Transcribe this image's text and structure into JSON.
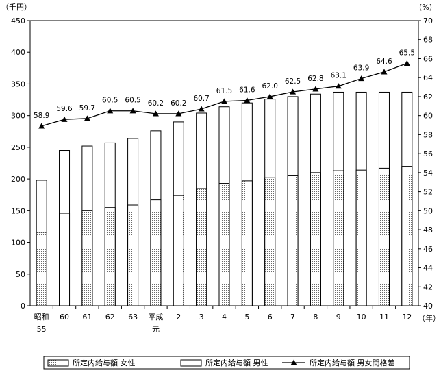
{
  "chart_data": {
    "type": "bar",
    "y_unit_left": "（千円）",
    "y_unit_right": "(%)",
    "x_unit": "（年）",
    "categories": [
      [
        "昭和",
        "55"
      ],
      [
        "60"
      ],
      [
        "61"
      ],
      [
        "62"
      ],
      [
        "63"
      ],
      [
        "平成",
        "元"
      ],
      [
        "2"
      ],
      [
        "3"
      ],
      [
        "4"
      ],
      [
        "5"
      ],
      [
        "6"
      ],
      [
        "7"
      ],
      [
        "8"
      ],
      [
        "9"
      ],
      [
        "10"
      ],
      [
        "11"
      ],
      [
        "12"
      ]
    ],
    "ylim_left": [
      0,
      450
    ],
    "yticks_left": [
      "0",
      "50",
      "100",
      "150",
      "200",
      "250",
      "300",
      "350",
      "400",
      "450"
    ],
    "ylim_right": [
      40,
      70
    ],
    "yticks_right": [
      "40",
      "42",
      "44",
      "46",
      "48",
      "50",
      "52",
      "54",
      "56",
      "58",
      "60",
      "62",
      "64",
      "66",
      "68",
      "70"
    ],
    "series": [
      {
        "name": "所定内給与額 女性",
        "kind": "bar",
        "values": [
          116,
          146,
          150,
          155,
          159,
          167,
          174,
          185,
          193,
          197,
          202,
          206,
          210,
          213,
          214,
          217,
          220
        ]
      },
      {
        "name": "所定内給与額 男性",
        "kind": "bar",
        "values": [
          198,
          245,
          252,
          257,
          264,
          276,
          290,
          304,
          314,
          320,
          326,
          330,
          334,
          337,
          337,
          337,
          337
        ]
      },
      {
        "name": "所定内給与額 男女間格差",
        "kind": "line",
        "axis": "right",
        "values": [
          58.9,
          59.6,
          59.7,
          60.5,
          60.5,
          60.2,
          60.2,
          60.7,
          61.5,
          61.6,
          62.0,
          62.5,
          62.8,
          63.1,
          63.9,
          64.6,
          65.5
        ],
        "labels": [
          "58.9",
          "59.6",
          "59.7",
          "60.5",
          "60.5",
          "60.2",
          "60.2",
          "60.7",
          "61.5",
          "61.6",
          "62.0",
          "62.5",
          "62.8",
          "63.1",
          "63.9",
          "64.6",
          "65.5"
        ]
      }
    ],
    "legend": {
      "position": "bottom",
      "items": [
        "所定内給与額 女性",
        "所定内給与額 男性",
        "所定内給与額 男女間格差"
      ]
    },
    "colors": {
      "bar_fill_male": "#ffffff",
      "bar_dot": "#555555",
      "line": "#000000"
    }
  }
}
